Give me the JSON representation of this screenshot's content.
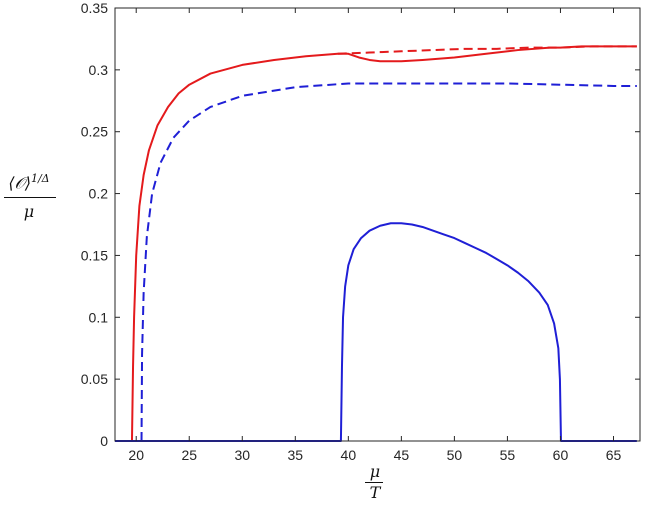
{
  "chart_data": {
    "type": "line",
    "xlabel_numerator": "μ",
    "xlabel_denominator": "T",
    "ylabel_numerator": "⟨𝒪⟩",
    "ylabel_exponent": "1/Δ",
    "ylabel_denominator": "μ",
    "xlim": [
      18,
      67.5
    ],
    "ylim": [
      0,
      0.35
    ],
    "xticks": [
      20,
      25,
      30,
      35,
      40,
      45,
      50,
      55,
      60,
      65
    ],
    "yticks": [
      0,
      0.05,
      0.1,
      0.15,
      0.2,
      0.25,
      0.3,
      0.35
    ],
    "ytick_labels": [
      "0",
      "0.05",
      "0.1",
      "0.15",
      "0.2",
      "0.25",
      "0.3",
      "0.35"
    ],
    "grid": false,
    "series": [
      {
        "color": "#e41a1c",
        "style": "solid",
        "x": [
          18,
          19.6,
          19.7,
          19.8,
          20,
          20.3,
          20.7,
          21.2,
          22,
          23,
          24,
          25,
          27,
          30,
          33,
          36,
          39,
          40,
          41,
          42,
          43,
          44,
          45,
          47,
          50,
          53,
          56,
          59,
          60,
          62,
          65,
          67.2
        ],
        "y": [
          0,
          0,
          0.06,
          0.1,
          0.15,
          0.19,
          0.215,
          0.235,
          0.255,
          0.27,
          0.281,
          0.288,
          0.297,
          0.304,
          0.308,
          0.311,
          0.313,
          0.313,
          0.31,
          0.308,
          0.307,
          0.307,
          0.307,
          0.308,
          0.31,
          0.313,
          0.316,
          0.318,
          0.318,
          0.319,
          0.319,
          0.319
        ]
      },
      {
        "color": "#e41a1c",
        "style": "dashed",
        "x": [
          39,
          42,
          45,
          48,
          51,
          54,
          57,
          60,
          63,
          67.2
        ],
        "y": [
          0.313,
          0.314,
          0.315,
          0.316,
          0.317,
          0.317,
          0.318,
          0.318,
          0.319,
          0.319
        ]
      },
      {
        "color": "#1f1fd6",
        "style": "dashed",
        "x": [
          20.5,
          20.55,
          20.7,
          21,
          21.5,
          22.3,
          23.5,
          25,
          27,
          30,
          35,
          40,
          45,
          50,
          55,
          60,
          65,
          67.2
        ],
        "y": [
          0,
          0.07,
          0.12,
          0.165,
          0.2,
          0.225,
          0.245,
          0.259,
          0.27,
          0.279,
          0.286,
          0.289,
          0.289,
          0.289,
          0.289,
          0.288,
          0.287,
          0.287
        ]
      },
      {
        "color": "#1f1fd6",
        "style": "solid",
        "x": [
          18,
          39.3,
          39.4,
          39.5,
          39.7,
          40,
          40.5,
          41.2,
          42,
          43,
          44,
          45,
          46,
          47,
          48,
          49,
          50,
          51,
          52,
          53,
          54,
          55,
          56,
          57,
          58,
          58.8,
          59.4,
          59.8,
          59.95,
          60.05,
          60.2,
          67.2
        ],
        "y": [
          0,
          0,
          0.06,
          0.1,
          0.125,
          0.142,
          0.155,
          0.164,
          0.17,
          0.174,
          0.176,
          0.176,
          0.175,
          0.173,
          0.17,
          0.167,
          0.164,
          0.16,
          0.156,
          0.152,
          0.147,
          0.142,
          0.136,
          0.129,
          0.12,
          0.11,
          0.095,
          0.075,
          0.05,
          0,
          0,
          0
        ]
      }
    ]
  }
}
